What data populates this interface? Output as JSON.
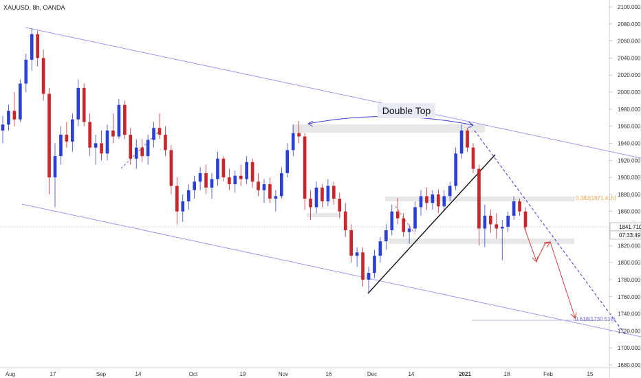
{
  "chart_data": {
    "type": "candlestick",
    "title": "XAUUSD, 8h, OANDA",
    "price_tag": "1841.710",
    "countdown": "07:33:49",
    "ylim": [
      1675,
      2110
    ],
    "y_ticks": [
      "1680.000",
      "1700.000",
      "1720.000",
      "1740.000",
      "1760.000",
      "1780.000",
      "1800.000",
      "1820.000",
      "1840.000",
      "1860.000",
      "1880.000",
      "1900.000",
      "1920.000",
      "1940.000",
      "1960.000",
      "1980.000",
      "2000.000",
      "2020.000",
      "2040.000",
      "2060.000",
      "2080.000",
      "2100.000"
    ],
    "x_ticks": [
      "Aug",
      "17",
      "Sep",
      "14",
      "Oct",
      "19",
      "Nov",
      "16",
      "Dec",
      "14",
      "2021",
      "18",
      "Feb",
      "15"
    ],
    "annotations": {
      "double_top": "Double Top",
      "fib_382": "0.382(1871.415)",
      "fib_618": "0.618(1730.538)"
    },
    "series": [
      {
        "values": [
          {
            "o": 1955,
            "h": 1972,
            "l": 1940,
            "c": 1962
          },
          {
            "o": 1962,
            "h": 1985,
            "l": 1955,
            "c": 1978
          },
          {
            "o": 1978,
            "h": 2000,
            "l": 1960,
            "c": 1968
          },
          {
            "o": 1968,
            "h": 2015,
            "l": 1965,
            "c": 2010
          },
          {
            "o": 2010,
            "h": 2045,
            "l": 2000,
            "c": 2038
          },
          {
            "o": 2038,
            "h": 2075,
            "l": 2025,
            "c": 2068
          },
          {
            "o": 2068,
            "h": 2072,
            "l": 2030,
            "c": 2040
          },
          {
            "o": 2040,
            "h": 2050,
            "l": 1990,
            "c": 1998
          },
          {
            "o": 1998,
            "h": 2005,
            "l": 1880,
            "c": 1900
          },
          {
            "o": 1900,
            "h": 1940,
            "l": 1865,
            "c": 1925
          },
          {
            "o": 1925,
            "h": 1960,
            "l": 1915,
            "c": 1950
          },
          {
            "o": 1950,
            "h": 1965,
            "l": 1935,
            "c": 1942
          },
          {
            "o": 1942,
            "h": 1975,
            "l": 1930,
            "c": 1968
          },
          {
            "o": 1968,
            "h": 2015,
            "l": 1960,
            "c": 2005
          },
          {
            "o": 2005,
            "h": 2010,
            "l": 1960,
            "c": 1965
          },
          {
            "o": 1965,
            "h": 1975,
            "l": 1925,
            "c": 1935
          },
          {
            "o": 1935,
            "h": 1950,
            "l": 1915,
            "c": 1940
          },
          {
            "o": 1940,
            "h": 1955,
            "l": 1920,
            "c": 1928
          },
          {
            "o": 1928,
            "h": 1962,
            "l": 1920,
            "c": 1955
          },
          {
            "o": 1955,
            "h": 1975,
            "l": 1940,
            "c": 1948
          },
          {
            "o": 1948,
            "h": 1992,
            "l": 1945,
            "c": 1985
          },
          {
            "o": 1985,
            "h": 1990,
            "l": 1945,
            "c": 1950
          },
          {
            "o": 1950,
            "h": 1958,
            "l": 1915,
            "c": 1922
          },
          {
            "o": 1922,
            "h": 1945,
            "l": 1910,
            "c": 1935
          },
          {
            "o": 1935,
            "h": 1945,
            "l": 1918,
            "c": 1925
          },
          {
            "o": 1925,
            "h": 1950,
            "l": 1915,
            "c": 1944
          },
          {
            "o": 1944,
            "h": 1965,
            "l": 1935,
            "c": 1958
          },
          {
            "o": 1958,
            "h": 1975,
            "l": 1945,
            "c": 1950
          },
          {
            "o": 1950,
            "h": 1960,
            "l": 1925,
            "c": 1932
          },
          {
            "o": 1932,
            "h": 1938,
            "l": 1880,
            "c": 1890
          },
          {
            "o": 1890,
            "h": 1900,
            "l": 1845,
            "c": 1860
          },
          {
            "o": 1860,
            "h": 1880,
            "l": 1848,
            "c": 1872
          },
          {
            "o": 1872,
            "h": 1892,
            "l": 1862,
            "c": 1885
          },
          {
            "o": 1885,
            "h": 1902,
            "l": 1875,
            "c": 1895
          },
          {
            "o": 1895,
            "h": 1912,
            "l": 1885,
            "c": 1905
          },
          {
            "o": 1905,
            "h": 1915,
            "l": 1880,
            "c": 1888
          },
          {
            "o": 1888,
            "h": 1905,
            "l": 1875,
            "c": 1898
          },
          {
            "o": 1898,
            "h": 1930,
            "l": 1890,
            "c": 1922
          },
          {
            "o": 1922,
            "h": 1925,
            "l": 1895,
            "c": 1900
          },
          {
            "o": 1900,
            "h": 1910,
            "l": 1885,
            "c": 1892
          },
          {
            "o": 1892,
            "h": 1908,
            "l": 1882,
            "c": 1902
          },
          {
            "o": 1902,
            "h": 1915,
            "l": 1890,
            "c": 1898
          },
          {
            "o": 1898,
            "h": 1925,
            "l": 1892,
            "c": 1918
          },
          {
            "o": 1918,
            "h": 1922,
            "l": 1888,
            "c": 1895
          },
          {
            "o": 1895,
            "h": 1905,
            "l": 1878,
            "c": 1885
          },
          {
            "o": 1885,
            "h": 1898,
            "l": 1870,
            "c": 1892
          },
          {
            "o": 1892,
            "h": 1900,
            "l": 1870,
            "c": 1875
          },
          {
            "o": 1875,
            "h": 1885,
            "l": 1860,
            "c": 1878
          },
          {
            "o": 1878,
            "h": 1912,
            "l": 1875,
            "c": 1905
          },
          {
            "o": 1905,
            "h": 1940,
            "l": 1900,
            "c": 1932
          },
          {
            "o": 1932,
            "h": 1962,
            "l": 1925,
            "c": 1952
          },
          {
            "o": 1952,
            "h": 1966,
            "l": 1940,
            "c": 1948
          },
          {
            "o": 1948,
            "h": 1952,
            "l": 1862,
            "c": 1875
          },
          {
            "o": 1875,
            "h": 1885,
            "l": 1850,
            "c": 1865
          },
          {
            "o": 1865,
            "h": 1895,
            "l": 1858,
            "c": 1888
          },
          {
            "o": 1888,
            "h": 1892,
            "l": 1865,
            "c": 1872
          },
          {
            "o": 1872,
            "h": 1898,
            "l": 1866,
            "c": 1890
          },
          {
            "o": 1890,
            "h": 1895,
            "l": 1868,
            "c": 1875
          },
          {
            "o": 1875,
            "h": 1882,
            "l": 1852,
            "c": 1860
          },
          {
            "o": 1860,
            "h": 1870,
            "l": 1830,
            "c": 1838
          },
          {
            "o": 1838,
            "h": 1845,
            "l": 1800,
            "c": 1808
          },
          {
            "o": 1808,
            "h": 1818,
            "l": 1795,
            "c": 1812
          },
          {
            "o": 1812,
            "h": 1818,
            "l": 1772,
            "c": 1780
          },
          {
            "o": 1780,
            "h": 1795,
            "l": 1765,
            "c": 1788
          },
          {
            "o": 1788,
            "h": 1815,
            "l": 1782,
            "c": 1808
          },
          {
            "o": 1808,
            "h": 1830,
            "l": 1800,
            "c": 1825
          },
          {
            "o": 1825,
            "h": 1845,
            "l": 1815,
            "c": 1838
          },
          {
            "o": 1838,
            "h": 1868,
            "l": 1832,
            "c": 1860
          },
          {
            "o": 1860,
            "h": 1876,
            "l": 1845,
            "c": 1852
          },
          {
            "o": 1852,
            "h": 1858,
            "l": 1830,
            "c": 1836
          },
          {
            "o": 1836,
            "h": 1845,
            "l": 1822,
            "c": 1840
          },
          {
            "o": 1840,
            "h": 1872,
            "l": 1836,
            "c": 1865
          },
          {
            "o": 1865,
            "h": 1885,
            "l": 1855,
            "c": 1878
          },
          {
            "o": 1878,
            "h": 1888,
            "l": 1862,
            "c": 1870
          },
          {
            "o": 1870,
            "h": 1885,
            "l": 1862,
            "c": 1880
          },
          {
            "o": 1880,
            "h": 1886,
            "l": 1858,
            "c": 1866
          },
          {
            "o": 1866,
            "h": 1885,
            "l": 1862,
            "c": 1878
          },
          {
            "o": 1878,
            "h": 1895,
            "l": 1872,
            "c": 1890
          },
          {
            "o": 1890,
            "h": 1935,
            "l": 1885,
            "c": 1928
          },
          {
            "o": 1928,
            "h": 1962,
            "l": 1922,
            "c": 1955
          },
          {
            "o": 1955,
            "h": 1958,
            "l": 1930,
            "c": 1935
          },
          {
            "o": 1935,
            "h": 1940,
            "l": 1905,
            "c": 1910
          },
          {
            "o": 1910,
            "h": 1915,
            "l": 1820,
            "c": 1840
          },
          {
            "o": 1840,
            "h": 1868,
            "l": 1818,
            "c": 1855
          },
          {
            "o": 1855,
            "h": 1862,
            "l": 1835,
            "c": 1845
          },
          {
            "o": 1845,
            "h": 1858,
            "l": 1828,
            "c": 1840
          },
          {
            "o": 1840,
            "h": 1850,
            "l": 1803,
            "c": 1842
          },
          {
            "o": 1842,
            "h": 1860,
            "l": 1836,
            "c": 1855
          },
          {
            "o": 1855,
            "h": 1878,
            "l": 1850,
            "c": 1872
          },
          {
            "o": 1872,
            "h": 1875,
            "l": 1855,
            "c": 1860
          },
          {
            "o": 1860,
            "h": 1865,
            "l": 1838,
            "c": 1841.71
          }
        ]
      }
    ]
  }
}
